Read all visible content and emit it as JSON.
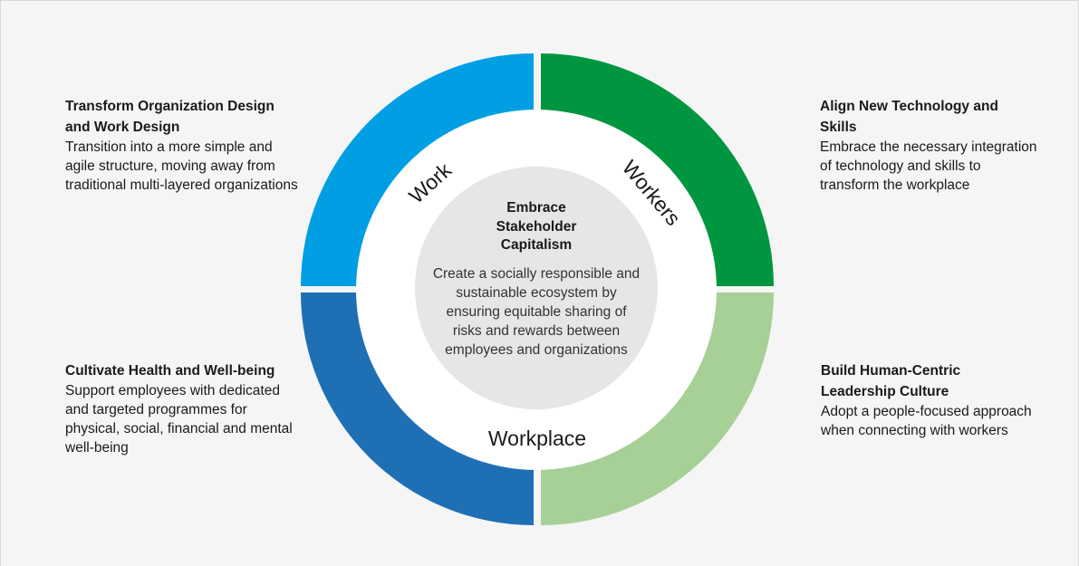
{
  "center": {
    "title": "Embrace Stakeholder Capitalism",
    "description": "Create a socially responsible and sustainable ecosystem by ensuring equitable sharing of risks and rewards between employees and organizations"
  },
  "ring_labels": {
    "work": "Work",
    "workers": "Workers",
    "workplace": "Workplace"
  },
  "quadrant_colors": {
    "top_left": "#009fe3",
    "top_right": "#009640",
    "bottom_left": "#1f6fb5",
    "bottom_right": "#a6d096",
    "center": "#e6e6e6"
  },
  "blocks": {
    "top_left": {
      "title": "Transform Organization Design and Work Design",
      "body": "Transition into a more simple and agile structure, moving away from traditional multi-layered organizations"
    },
    "top_right": {
      "title": "Align New Technology and Skills",
      "body": "Embrace the necessary integration of technology and skills to transform the workplace"
    },
    "bottom_left": {
      "title": "Cultivate Health and Well-being",
      "body": "Support employees with dedicated and targeted programmes for physical, social, financial and mental well-being"
    },
    "bottom_right": {
      "title": "Build Human-Centric Leadership Culture",
      "body": "Adopt a people-focused approach when connecting with workers"
    }
  }
}
